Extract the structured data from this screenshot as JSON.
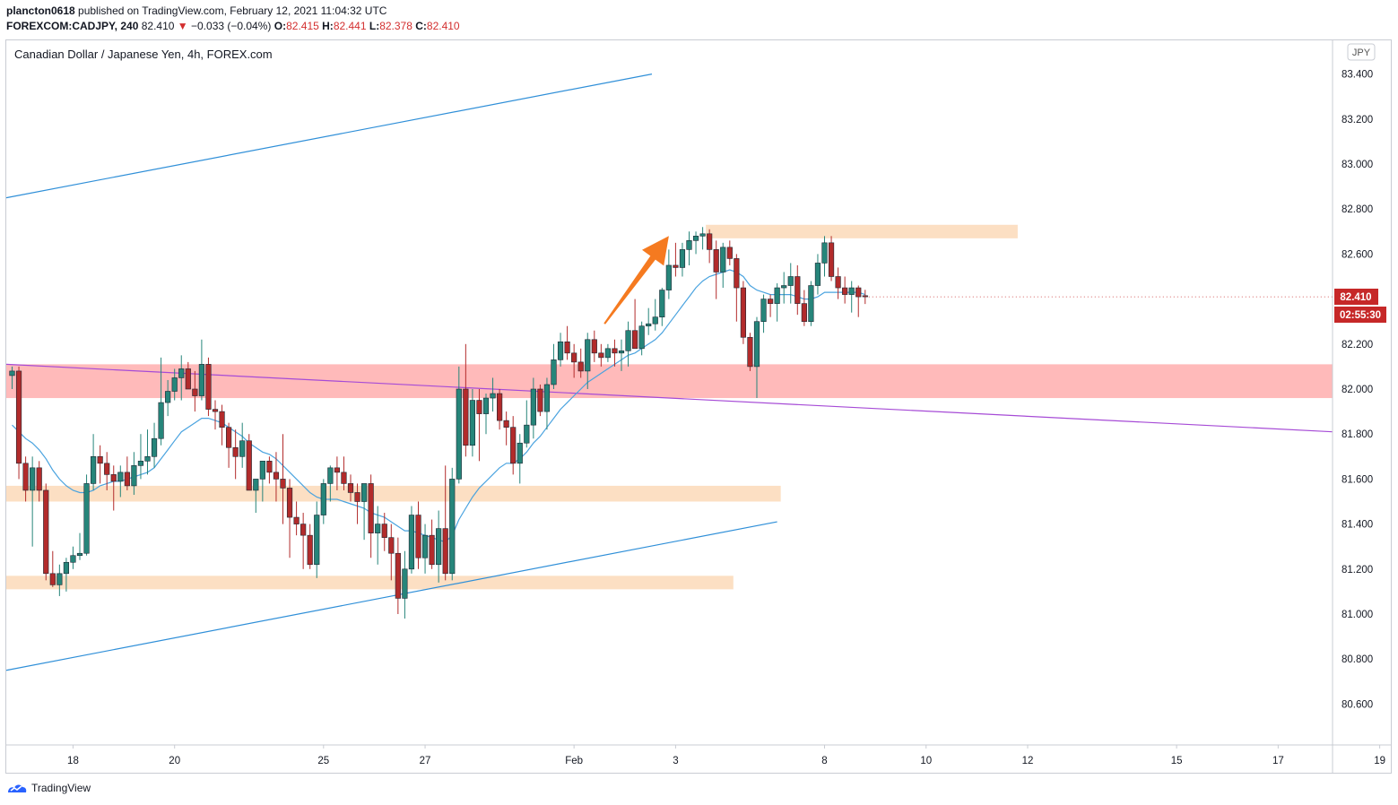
{
  "header": {
    "user": "plancton0618",
    "published_text": " published on TradingView.com, February 12, 2021 11:04:32 UTC",
    "symbol": "FOREXCOM:CADJPY, 240",
    "last": "82.410",
    "change_arrow": "▼",
    "change": "−0.033 (−0.04%)",
    "o_label": "O:",
    "o_value": "82.415",
    "h_label": "H:",
    "h_value": "82.441",
    "l_label": "L:",
    "l_value": "82.378",
    "c_label": "C:",
    "c_value": "82.410"
  },
  "chart_title": "Canadian Dollar / Japanese Yen, 4h, FOREX.com",
  "currency_badge": "JPY",
  "price_label": "82.410",
  "countdown_label": "02:55:30",
  "footer_brand": "TradingView",
  "colors": {
    "up": "#26857a",
    "down": "#b22b2b",
    "ma": "#4aa3df",
    "channel": "#2f8fd8",
    "trend": "#a64bd6",
    "zone_red": "#ffb3b3",
    "zone_orange": "#fcd9b8",
    "arrow": "#f57a20",
    "price_tag": "#c62828"
  },
  "chart_data": {
    "type": "candlestick",
    "y_axis": {
      "ticks": [
        "83.400",
        "83.200",
        "83.000",
        "82.800",
        "82.600",
        "82.400",
        "82.200",
        "82.000",
        "81.800",
        "81.600",
        "81.400",
        "81.200",
        "81.000",
        "80.800",
        "80.600"
      ],
      "range": [
        80.42,
        83.55
      ]
    },
    "x_axis": {
      "ticks": [
        {
          "label": "18",
          "bar": 9
        },
        {
          "label": "20",
          "bar": 24
        },
        {
          "label": "25",
          "bar": 46
        },
        {
          "label": "27",
          "bar": 61
        },
        {
          "label": "Feb",
          "bar": 83
        },
        {
          "label": "3",
          "bar": 98
        },
        {
          "label": "8",
          "bar": 120
        },
        {
          "label": "10",
          "bar": 135
        },
        {
          "label": "12",
          "bar": 150
        },
        {
          "label": "15",
          "bar": 172
        },
        {
          "label": "17",
          "bar": 187
        },
        {
          "label": "19",
          "bar": 202
        }
      ]
    },
    "candles": [
      [
        82.06,
        82.1,
        82.0,
        82.08
      ],
      [
        82.08,
        82.1,
        81.6,
        81.67
      ],
      [
        81.67,
        81.7,
        81.5,
        81.55
      ],
      [
        81.55,
        81.7,
        81.3,
        81.65
      ],
      [
        81.65,
        81.68,
        81.5,
        81.55
      ],
      [
        81.55,
        81.58,
        81.15,
        81.18
      ],
      [
        81.18,
        81.28,
        81.12,
        81.13
      ],
      [
        81.13,
        81.22,
        81.08,
        81.18
      ],
      [
        81.18,
        81.25,
        81.1,
        81.23
      ],
      [
        81.23,
        81.3,
        81.2,
        81.26
      ],
      [
        81.26,
        81.36,
        81.24,
        81.27
      ],
      [
        81.27,
        81.62,
        81.26,
        81.58
      ],
      [
        81.58,
        81.8,
        81.55,
        81.7
      ],
      [
        81.7,
        81.75,
        81.58,
        81.67
      ],
      [
        81.67,
        81.72,
        81.55,
        81.62
      ],
      [
        81.62,
        81.66,
        81.46,
        81.59
      ],
      [
        81.59,
        81.66,
        81.52,
        81.63
      ],
      [
        81.63,
        81.7,
        81.55,
        81.57
      ],
      [
        81.57,
        81.72,
        81.53,
        81.66
      ],
      [
        81.66,
        81.8,
        81.6,
        81.68
      ],
      [
        81.68,
        81.82,
        81.62,
        81.7
      ],
      [
        81.7,
        81.85,
        81.65,
        81.78
      ],
      [
        81.78,
        82.14,
        81.75,
        81.94
      ],
      [
        81.94,
        82.04,
        81.88,
        81.99
      ],
      [
        81.99,
        82.09,
        81.95,
        82.05
      ],
      [
        82.05,
        82.15,
        81.95,
        82.09
      ],
      [
        82.09,
        82.12,
        82.0,
        82.0
      ],
      [
        82.0,
        82.08,
        81.9,
        81.97
      ],
      [
        81.97,
        82.22,
        81.95,
        82.11
      ],
      [
        82.11,
        82.14,
        81.88,
        81.91
      ],
      [
        81.91,
        81.95,
        81.82,
        81.9
      ],
      [
        81.9,
        81.93,
        81.75,
        81.83
      ],
      [
        81.83,
        81.85,
        81.65,
        81.74
      ],
      [
        81.74,
        81.82,
        81.6,
        81.7
      ],
      [
        81.7,
        81.85,
        81.65,
        81.77
      ],
      [
        81.77,
        81.8,
        81.55,
        81.55
      ],
      [
        81.55,
        81.6,
        81.45,
        81.6
      ],
      [
        81.6,
        81.68,
        81.5,
        81.68
      ],
      [
        81.68,
        81.7,
        81.58,
        81.63
      ],
      [
        81.63,
        81.72,
        81.5,
        81.6
      ],
      [
        81.6,
        81.8,
        81.4,
        81.56
      ],
      [
        81.56,
        81.6,
        81.25,
        81.43
      ],
      [
        81.43,
        81.5,
        81.35,
        81.4
      ],
      [
        81.4,
        81.45,
        81.2,
        81.35
      ],
      [
        81.35,
        81.4,
        81.2,
        81.22
      ],
      [
        81.22,
        81.5,
        81.16,
        81.44
      ],
      [
        81.44,
        81.6,
        81.4,
        81.58
      ],
      [
        81.58,
        81.66,
        81.5,
        81.65
      ],
      [
        81.65,
        81.7,
        81.55,
        81.63
      ],
      [
        81.63,
        81.7,
        81.55,
        81.58
      ],
      [
        81.58,
        81.62,
        81.5,
        81.54
      ],
      [
        81.54,
        81.58,
        81.4,
        81.5
      ],
      [
        81.5,
        81.58,
        81.33,
        81.58
      ],
      [
        81.58,
        81.62,
        81.25,
        81.36
      ],
      [
        81.36,
        81.48,
        81.22,
        81.4
      ],
      [
        81.4,
        81.45,
        81.28,
        81.34
      ],
      [
        81.34,
        81.4,
        81.15,
        81.27
      ],
      [
        81.27,
        81.34,
        81.0,
        81.07
      ],
      [
        81.07,
        81.28,
        80.98,
        81.2
      ],
      [
        81.2,
        81.48,
        81.18,
        81.44
      ],
      [
        81.44,
        81.5,
        81.2,
        81.25
      ],
      [
        81.25,
        81.4,
        81.18,
        81.35
      ],
      [
        81.35,
        81.42,
        81.2,
        81.22
      ],
      [
        81.22,
        81.46,
        81.14,
        81.38
      ],
      [
        81.38,
        81.66,
        81.15,
        81.18
      ],
      [
        81.18,
        81.65,
        81.15,
        81.6
      ],
      [
        81.6,
        82.1,
        81.58,
        82.0
      ],
      [
        82.0,
        82.2,
        81.7,
        81.75
      ],
      [
        81.75,
        82.0,
        81.7,
        81.95
      ],
      [
        81.95,
        82.0,
        81.68,
        81.89
      ],
      [
        81.89,
        81.98,
        81.8,
        81.96
      ],
      [
        81.96,
        82.05,
        81.9,
        81.98
      ],
      [
        81.98,
        82.0,
        81.82,
        81.86
      ],
      [
        81.86,
        81.9,
        81.75,
        81.83
      ],
      [
        81.83,
        81.88,
        81.62,
        81.67
      ],
      [
        81.67,
        81.8,
        81.58,
        81.76
      ],
      [
        81.76,
        81.95,
        81.74,
        81.84
      ],
      [
        81.84,
        82.05,
        81.78,
        82.0
      ],
      [
        82.0,
        82.02,
        81.88,
        81.9
      ],
      [
        81.9,
        82.05,
        81.82,
        82.02
      ],
      [
        82.02,
        82.2,
        82.0,
        82.13
      ],
      [
        82.13,
        82.25,
        82.1,
        82.21
      ],
      [
        82.21,
        82.28,
        82.13,
        82.16
      ],
      [
        82.16,
        82.2,
        82.05,
        82.12
      ],
      [
        82.12,
        82.18,
        82.05,
        82.08
      ],
      [
        82.08,
        82.25,
        82.0,
        82.22
      ],
      [
        82.22,
        82.26,
        82.12,
        82.16
      ],
      [
        82.16,
        82.2,
        82.1,
        82.14
      ],
      [
        82.14,
        82.2,
        82.12,
        82.18
      ],
      [
        82.18,
        82.22,
        82.1,
        82.16
      ],
      [
        82.16,
        82.22,
        82.08,
        82.17
      ],
      [
        82.17,
        82.3,
        82.1,
        82.26
      ],
      [
        82.26,
        82.4,
        82.18,
        82.18
      ],
      [
        82.18,
        82.3,
        82.15,
        82.28
      ],
      [
        82.28,
        82.36,
        82.24,
        82.29
      ],
      [
        82.29,
        82.4,
        82.26,
        82.32
      ],
      [
        82.32,
        82.45,
        82.28,
        82.44
      ],
      [
        82.44,
        82.62,
        82.4,
        82.55
      ],
      [
        82.55,
        82.65,
        82.5,
        82.54
      ],
      [
        82.54,
        82.65,
        82.5,
        82.62
      ],
      [
        82.62,
        82.7,
        82.55,
        82.66
      ],
      [
        82.66,
        82.7,
        82.6,
        82.68
      ],
      [
        82.68,
        82.72,
        82.62,
        82.69
      ],
      [
        82.69,
        82.71,
        82.56,
        82.62
      ],
      [
        82.62,
        82.66,
        82.4,
        82.52
      ],
      [
        82.52,
        82.65,
        82.45,
        82.63
      ],
      [
        82.63,
        82.66,
        82.55,
        82.58
      ],
      [
        82.58,
        82.6,
        82.3,
        82.45
      ],
      [
        82.45,
        82.48,
        82.2,
        82.23
      ],
      [
        82.23,
        82.25,
        82.08,
        82.1
      ],
      [
        82.1,
        82.32,
        81.96,
        82.3
      ],
      [
        82.3,
        82.42,
        82.25,
        82.4
      ],
      [
        82.4,
        82.42,
        82.32,
        82.38
      ],
      [
        82.38,
        82.47,
        82.3,
        82.45
      ],
      [
        82.45,
        82.52,
        82.38,
        82.46
      ],
      [
        82.46,
        82.56,
        82.38,
        82.5
      ],
      [
        82.5,
        82.55,
        82.33,
        82.38
      ],
      [
        82.38,
        82.44,
        82.28,
        82.3
      ],
      [
        82.3,
        82.48,
        82.28,
        82.46
      ],
      [
        82.46,
        82.6,
        82.42,
        82.56
      ],
      [
        82.56,
        82.68,
        82.5,
        82.65
      ],
      [
        82.65,
        82.68,
        82.48,
        82.5
      ],
      [
        82.5,
        82.54,
        82.4,
        82.45
      ],
      [
        82.45,
        82.5,
        82.38,
        82.42
      ],
      [
        82.42,
        82.48,
        82.34,
        82.45
      ],
      [
        82.45,
        82.46,
        82.32,
        82.41
      ],
      [
        82.415,
        82.441,
        82.378,
        82.41
      ]
    ],
    "moving_average": {
      "start_bar": 0,
      "values": [
        81.84,
        81.81,
        81.78,
        81.76,
        81.73,
        81.69,
        81.64,
        81.6,
        81.57,
        81.55,
        81.54,
        81.54,
        81.55,
        81.57,
        81.58,
        81.59,
        81.59,
        81.6,
        81.61,
        81.62,
        81.63,
        81.65,
        81.69,
        81.73,
        81.77,
        81.81,
        81.83,
        81.85,
        81.87,
        81.87,
        81.86,
        81.85,
        81.83,
        81.81,
        81.79,
        81.76,
        81.74,
        81.72,
        81.71,
        81.69,
        81.66,
        81.63,
        81.6,
        81.57,
        81.54,
        81.52,
        81.51,
        81.51,
        81.51,
        81.5,
        81.49,
        81.48,
        81.47,
        81.45,
        81.44,
        81.43,
        81.41,
        81.39,
        81.37,
        81.37,
        81.36,
        81.35,
        81.34,
        81.33,
        81.32,
        81.35,
        81.42,
        81.47,
        81.52,
        81.56,
        81.59,
        81.62,
        81.65,
        81.67,
        81.67,
        81.69,
        81.72,
        81.76,
        81.79,
        81.83,
        81.87,
        81.91,
        81.94,
        81.97,
        82.0,
        82.03,
        82.05,
        82.07,
        82.09,
        82.11,
        82.13,
        82.15,
        82.16,
        82.18,
        82.2,
        82.22,
        82.25,
        82.29,
        82.33,
        82.37,
        82.41,
        82.45,
        82.48,
        82.5,
        82.51,
        82.52,
        82.53,
        82.52,
        82.5,
        82.46,
        82.44,
        82.43,
        82.42,
        82.42,
        82.42,
        82.42,
        82.41,
        82.4,
        82.4,
        82.41,
        82.43,
        82.43,
        82.43,
        82.43,
        82.43,
        82.43,
        82.42
      ]
    },
    "zones": [
      {
        "color": "red",
        "top": 82.11,
        "bottom": 81.96,
        "from_bar": 0,
        "to_bar": "end"
      },
      {
        "color": "orange",
        "top": 82.73,
        "bottom": 82.67,
        "from_bar": 103,
        "to_bar": 148
      },
      {
        "color": "orange",
        "top": 81.57,
        "bottom": 81.5,
        "from_bar": 0,
        "to_bar": 113
      },
      {
        "color": "orange",
        "top": 81.17,
        "bottom": 81.11,
        "from_bar": 0,
        "to_bar": 106
      }
    ],
    "lines": [
      {
        "name": "upper-channel",
        "color": "channel",
        "from": [
          0,
          82.85
        ],
        "to": [
          94.5,
          83.4
        ]
      },
      {
        "name": "lower-channel",
        "color": "channel",
        "from": [
          0,
          80.75
        ],
        "to": [
          113,
          81.41
        ]
      },
      {
        "name": "trendline",
        "color": "trend",
        "from": [
          0,
          82.11
        ],
        "to": [
          207,
          81.81
        ]
      }
    ],
    "arrow": {
      "from": [
        87.5,
        82.29
      ],
      "to": [
        97,
        82.68
      ]
    },
    "last_price": 82.41,
    "grid": false
  }
}
